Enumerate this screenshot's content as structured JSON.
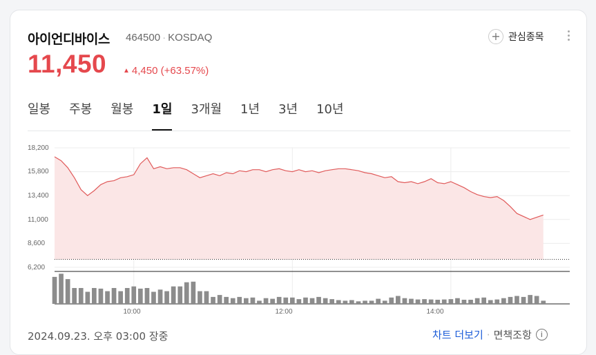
{
  "stock": {
    "name": "아이언디바이스",
    "code": "464500",
    "market": "KOSDAQ",
    "price": "11,450",
    "change": "4,450",
    "change_pct": "(+63.57%)"
  },
  "actions": {
    "watchlist_label": "관심종목"
  },
  "tabs": [
    {
      "label": "일봉",
      "active": false
    },
    {
      "label": "주봉",
      "active": false
    },
    {
      "label": "월봉",
      "active": false
    },
    {
      "label": "1일",
      "active": true
    },
    {
      "label": "3개월",
      "active": false
    },
    {
      "label": "1년",
      "active": false
    },
    {
      "label": "3년",
      "active": false
    },
    {
      "label": "10년",
      "active": false
    }
  ],
  "chart_data": {
    "type": "area",
    "y_tick_labels": [
      "18,200",
      "15,800",
      "13,400",
      "11,000",
      "8,600",
      "6,200"
    ],
    "x_tick_labels": [
      "10:00",
      "12:00",
      "14:00"
    ],
    "ylim": [
      6200,
      18200
    ],
    "reference_line": 7000,
    "x": [
      "09:00",
      "09:05",
      "09:10",
      "09:15",
      "09:20",
      "09:25",
      "09:30",
      "09:35",
      "09:40",
      "09:45",
      "09:50",
      "09:55",
      "10:00",
      "10:05",
      "10:10",
      "10:15",
      "10:20",
      "10:25",
      "10:30",
      "10:35",
      "10:40",
      "10:45",
      "10:50",
      "10:55",
      "11:00",
      "11:05",
      "11:10",
      "11:15",
      "11:20",
      "11:25",
      "11:30",
      "11:35",
      "11:40",
      "11:45",
      "11:50",
      "11:55",
      "12:00",
      "12:05",
      "12:10",
      "12:15",
      "12:20",
      "12:25",
      "12:30",
      "12:35",
      "12:40",
      "12:45",
      "12:50",
      "12:55",
      "13:00",
      "13:05",
      "13:10",
      "13:15",
      "13:20",
      "13:25",
      "13:30",
      "13:35",
      "13:40",
      "13:45",
      "13:50",
      "13:55",
      "14:00",
      "14:05",
      "14:10",
      "14:15",
      "14:20",
      "14:25",
      "14:30",
      "14:35",
      "14:40",
      "14:45",
      "14:50",
      "15:00",
      "15:10"
    ],
    "values": [
      17300,
      16900,
      16200,
      15200,
      14000,
      13400,
      13900,
      14500,
      14800,
      14900,
      15200,
      15300,
      15500,
      16600,
      17200,
      16100,
      16300,
      16100,
      16200,
      16200,
      16000,
      15600,
      15200,
      15400,
      15600,
      15400,
      15700,
      15600,
      15900,
      15800,
      16000,
      16000,
      15800,
      16000,
      16100,
      15900,
      15800,
      16000,
      15800,
      15900,
      15700,
      15900,
      16000,
      16100,
      16100,
      16000,
      15900,
      15700,
      15600,
      15400,
      15200,
      15300,
      14800,
      14700,
      14800,
      14600,
      14800,
      15100,
      14700,
      14600,
      14800,
      14500,
      14200,
      13800,
      13500,
      13300,
      13200,
      13300,
      12900,
      12300,
      11600,
      11000,
      11450
    ],
    "volume": {
      "x": [
        "09:00",
        "09:05",
        "09:10",
        "09:15",
        "09:20",
        "09:25",
        "09:30",
        "09:35",
        "09:40",
        "09:45",
        "09:50",
        "09:55",
        "10:00",
        "10:05",
        "10:10",
        "10:15",
        "10:20",
        "10:25",
        "10:30",
        "10:35",
        "10:40",
        "10:45",
        "10:50",
        "10:55",
        "11:00",
        "11:05",
        "11:10",
        "11:15",
        "11:20",
        "11:25",
        "11:30",
        "11:35",
        "11:40",
        "11:45",
        "11:50",
        "11:55",
        "12:00",
        "12:05",
        "12:10",
        "12:15",
        "12:20",
        "12:25",
        "12:30",
        "12:35",
        "12:40",
        "12:45",
        "12:50",
        "12:55",
        "13:00",
        "13:05",
        "13:10",
        "13:15",
        "13:20",
        "13:25",
        "13:30",
        "13:35",
        "13:40",
        "13:45",
        "13:50",
        "13:55",
        "14:00",
        "14:05",
        "14:10",
        "14:15",
        "14:20",
        "14:25",
        "14:30",
        "14:35",
        "14:40",
        "14:45",
        "14:50",
        "14:55",
        "15:00",
        "15:05",
        "15:10"
      ],
      "values": [
        85,
        95,
        78,
        50,
        50,
        38,
        50,
        48,
        40,
        50,
        40,
        50,
        55,
        48,
        50,
        38,
        45,
        40,
        55,
        55,
        68,
        70,
        40,
        40,
        22,
        28,
        22,
        18,
        22,
        18,
        20,
        10,
        18,
        16,
        22,
        20,
        20,
        15,
        20,
        18,
        22,
        18,
        15,
        12,
        10,
        12,
        8,
        10,
        10,
        16,
        10,
        20,
        25,
        18,
        16,
        14,
        15,
        14,
        13,
        14,
        15,
        18,
        13,
        13,
        18,
        20,
        12,
        14,
        18,
        22,
        25,
        22,
        28,
        25,
        10
      ]
    }
  },
  "footer": {
    "datetime": "2024.09.23. 오후 03:00 장중",
    "more_chart": "차트 더보기",
    "disclaimer": "면책조항"
  },
  "colors": {
    "up": "#e5484d",
    "line": "#e05a5a",
    "area": "#fbe6e6",
    "volume": "#8c8c8c",
    "link": "#1a5bd8"
  }
}
